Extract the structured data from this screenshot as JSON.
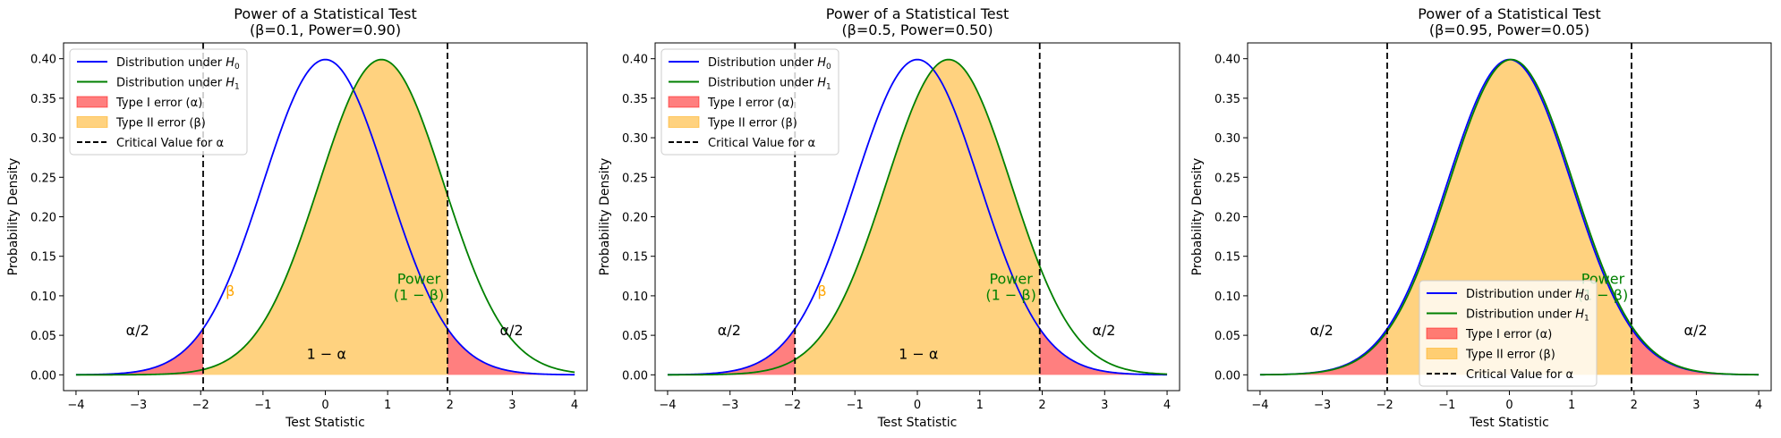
{
  "colors": {
    "h0": "#0000ff",
    "h1": "#008000",
    "type1": "#ff0000",
    "type2": "#ffa500",
    "critical": "#000000"
  },
  "chart_data": [
    {
      "type": "line",
      "title": "Power of a Statistical Test",
      "subtitle": "(β=0.1, Power=0.90)",
      "xlabel": "Test Statistic",
      "ylabel": "Probability Density",
      "xlim": [
        -4.2,
        4.2
      ],
      "ylim": [
        -0.02,
        0.42
      ],
      "xticks": [
        -4,
        -3,
        -2,
        -1,
        0,
        1,
        2,
        3,
        4
      ],
      "yticks": [
        0.0,
        0.05,
        0.1,
        0.15,
        0.2,
        0.25,
        0.3,
        0.35,
        0.4
      ],
      "xtick_labels": [
        "−4",
        "−3",
        "−2",
        "−1",
        "0",
        "1",
        "2",
        "3",
        "4"
      ],
      "ytick_labels": [
        "0.00",
        "0.05",
        "0.10",
        "0.15",
        "0.20",
        "0.25",
        "0.30",
        "0.35",
        "0.40"
      ],
      "critical_values": [
        -1.96,
        1.96
      ],
      "series": [
        {
          "name": "Distribution under H0",
          "kind": "normal",
          "mean": 0,
          "sd": 1
        },
        {
          "name": "Distribution under H1",
          "kind": "normal",
          "mean": 0.9,
          "sd": 1
        }
      ],
      "legend": {
        "placement": "upper-left",
        "entries": [
          {
            "label": "Distribution under ",
            "math": "H",
            "sub": "0",
            "kind": "line",
            "color": "#0000ff"
          },
          {
            "label": "Distribution under ",
            "math": "H",
            "sub": "1",
            "kind": "line",
            "color": "#008000"
          },
          {
            "label": "Type I error (α)",
            "kind": "patch",
            "color": "#ff0000"
          },
          {
            "label": "Type II error (β)",
            "kind": "patch",
            "color": "#ffa500"
          },
          {
            "label": "Critical Value for α",
            "kind": "dashed",
            "color": "#000000"
          }
        ]
      },
      "annotations": [
        {
          "text": "α/2",
          "x": -3.2,
          "y": 0.05,
          "color": "#000000"
        },
        {
          "text": "α/2",
          "x": 2.8,
          "y": 0.05,
          "color": "#000000"
        },
        {
          "text": "1 − α",
          "x": -0.3,
          "y": 0.02,
          "color": "#000000"
        },
        {
          "text": "β",
          "x": -1.6,
          "y": 0.1,
          "color": "#ffa500"
        },
        {
          "text": "Power",
          "x": 1.5,
          "y": 0.115,
          "color": "#008000",
          "anchor": "middle"
        },
        {
          "text": "(1 − β)",
          "x": 1.5,
          "y": 0.095,
          "color": "#008000",
          "anchor": "middle"
        }
      ]
    },
    {
      "type": "line",
      "title": "Power of a Statistical Test",
      "subtitle": "(β=0.5, Power=0.50)",
      "xlabel": "Test Statistic",
      "ylabel": "Probability Density",
      "xlim": [
        -4.2,
        4.2
      ],
      "ylim": [
        -0.02,
        0.42
      ],
      "xticks": [
        -4,
        -3,
        -2,
        -1,
        0,
        1,
        2,
        3,
        4
      ],
      "yticks": [
        0.0,
        0.05,
        0.1,
        0.15,
        0.2,
        0.25,
        0.3,
        0.35,
        0.4
      ],
      "xtick_labels": [
        "−4",
        "−3",
        "−2",
        "−1",
        "0",
        "1",
        "2",
        "3",
        "4"
      ],
      "ytick_labels": [
        "0.00",
        "0.05",
        "0.10",
        "0.15",
        "0.20",
        "0.25",
        "0.30",
        "0.35",
        "0.40"
      ],
      "critical_values": [
        -1.96,
        1.96
      ],
      "series": [
        {
          "name": "Distribution under H0",
          "kind": "normal",
          "mean": 0,
          "sd": 1
        },
        {
          "name": "Distribution under H1",
          "kind": "normal",
          "mean": 0.5,
          "sd": 1
        }
      ],
      "legend": {
        "placement": "upper-left",
        "entries": [
          {
            "label": "Distribution under ",
            "math": "H",
            "sub": "0",
            "kind": "line",
            "color": "#0000ff"
          },
          {
            "label": "Distribution under ",
            "math": "H",
            "sub": "1",
            "kind": "line",
            "color": "#008000"
          },
          {
            "label": "Type I error (α)",
            "kind": "patch",
            "color": "#ff0000"
          },
          {
            "label": "Type II error (β)",
            "kind": "patch",
            "color": "#ffa500"
          },
          {
            "label": "Critical Value for α",
            "kind": "dashed",
            "color": "#000000"
          }
        ]
      },
      "annotations": [
        {
          "text": "α/2",
          "x": -3.2,
          "y": 0.05,
          "color": "#000000"
        },
        {
          "text": "α/2",
          "x": 2.8,
          "y": 0.05,
          "color": "#000000"
        },
        {
          "text": "1 − α",
          "x": -0.3,
          "y": 0.02,
          "color": "#000000"
        },
        {
          "text": "β",
          "x": -1.6,
          "y": 0.1,
          "color": "#ffa500"
        },
        {
          "text": "Power",
          "x": 1.5,
          "y": 0.115,
          "color": "#008000",
          "anchor": "middle"
        },
        {
          "text": "(1 − β)",
          "x": 1.5,
          "y": 0.095,
          "color": "#008000",
          "anchor": "middle"
        }
      ]
    },
    {
      "type": "line",
      "title": "Power of a Statistical Test",
      "subtitle": "(β=0.95, Power=0.05)",
      "xlabel": "Test Statistic",
      "ylabel": "Probability Density",
      "xlim": [
        -4.2,
        4.2
      ],
      "ylim": [
        -0.02,
        0.42
      ],
      "xticks": [
        -4,
        -3,
        -2,
        -1,
        0,
        1,
        2,
        3,
        4
      ],
      "yticks": [
        0.0,
        0.05,
        0.1,
        0.15,
        0.2,
        0.25,
        0.3,
        0.35,
        0.4
      ],
      "xtick_labels": [
        "−4",
        "−3",
        "−2",
        "−1",
        "0",
        "1",
        "2",
        "3",
        "4"
      ],
      "ytick_labels": [
        "0.00",
        "0.05",
        "0.10",
        "0.15",
        "0.20",
        "0.25",
        "0.30",
        "0.35",
        "0.40"
      ],
      "critical_values": [
        -1.96,
        1.96
      ],
      "series": [
        {
          "name": "Distribution under H0",
          "kind": "normal",
          "mean": 0,
          "sd": 1
        },
        {
          "name": "Distribution under H1",
          "kind": "normal",
          "mean": 0.03,
          "sd": 1
        }
      ],
      "legend": {
        "placement": "lower-center",
        "entries": [
          {
            "label": "Distribution under ",
            "math": "H",
            "sub": "0",
            "kind": "line",
            "color": "#0000ff"
          },
          {
            "label": "Distribution under ",
            "math": "H",
            "sub": "1",
            "kind": "line",
            "color": "#008000"
          },
          {
            "label": "Type I error (α)",
            "kind": "patch",
            "color": "#ff0000"
          },
          {
            "label": "Type II error (β)",
            "kind": "patch",
            "color": "#ffa500"
          },
          {
            "label": "Critical Value for α",
            "kind": "dashed",
            "color": "#000000"
          }
        ]
      },
      "annotations": [
        {
          "text": "α/2",
          "x": -3.2,
          "y": 0.05,
          "color": "#000000"
        },
        {
          "text": "α/2",
          "x": 2.8,
          "y": 0.05,
          "color": "#000000"
        },
        {
          "text": "Power",
          "x": 1.5,
          "y": 0.115,
          "color": "#008000",
          "anchor": "middle"
        },
        {
          "text": "(1 − β)",
          "x": 1.5,
          "y": 0.095,
          "color": "#008000",
          "anchor": "middle"
        }
      ]
    }
  ]
}
